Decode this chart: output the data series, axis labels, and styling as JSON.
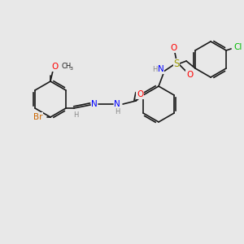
{
  "background_color": "#e8e8e8",
  "bond_color": "#1a1a1a",
  "colors": {
    "Br": "#cc6600",
    "N": "#0000ff",
    "O": "#ff0000",
    "S": "#999900",
    "Cl": "#00bb00",
    "H": "#888888",
    "C": "#1a1a1a"
  },
  "font_size_atom": 7.5,
  "font_size_small": 6.0
}
